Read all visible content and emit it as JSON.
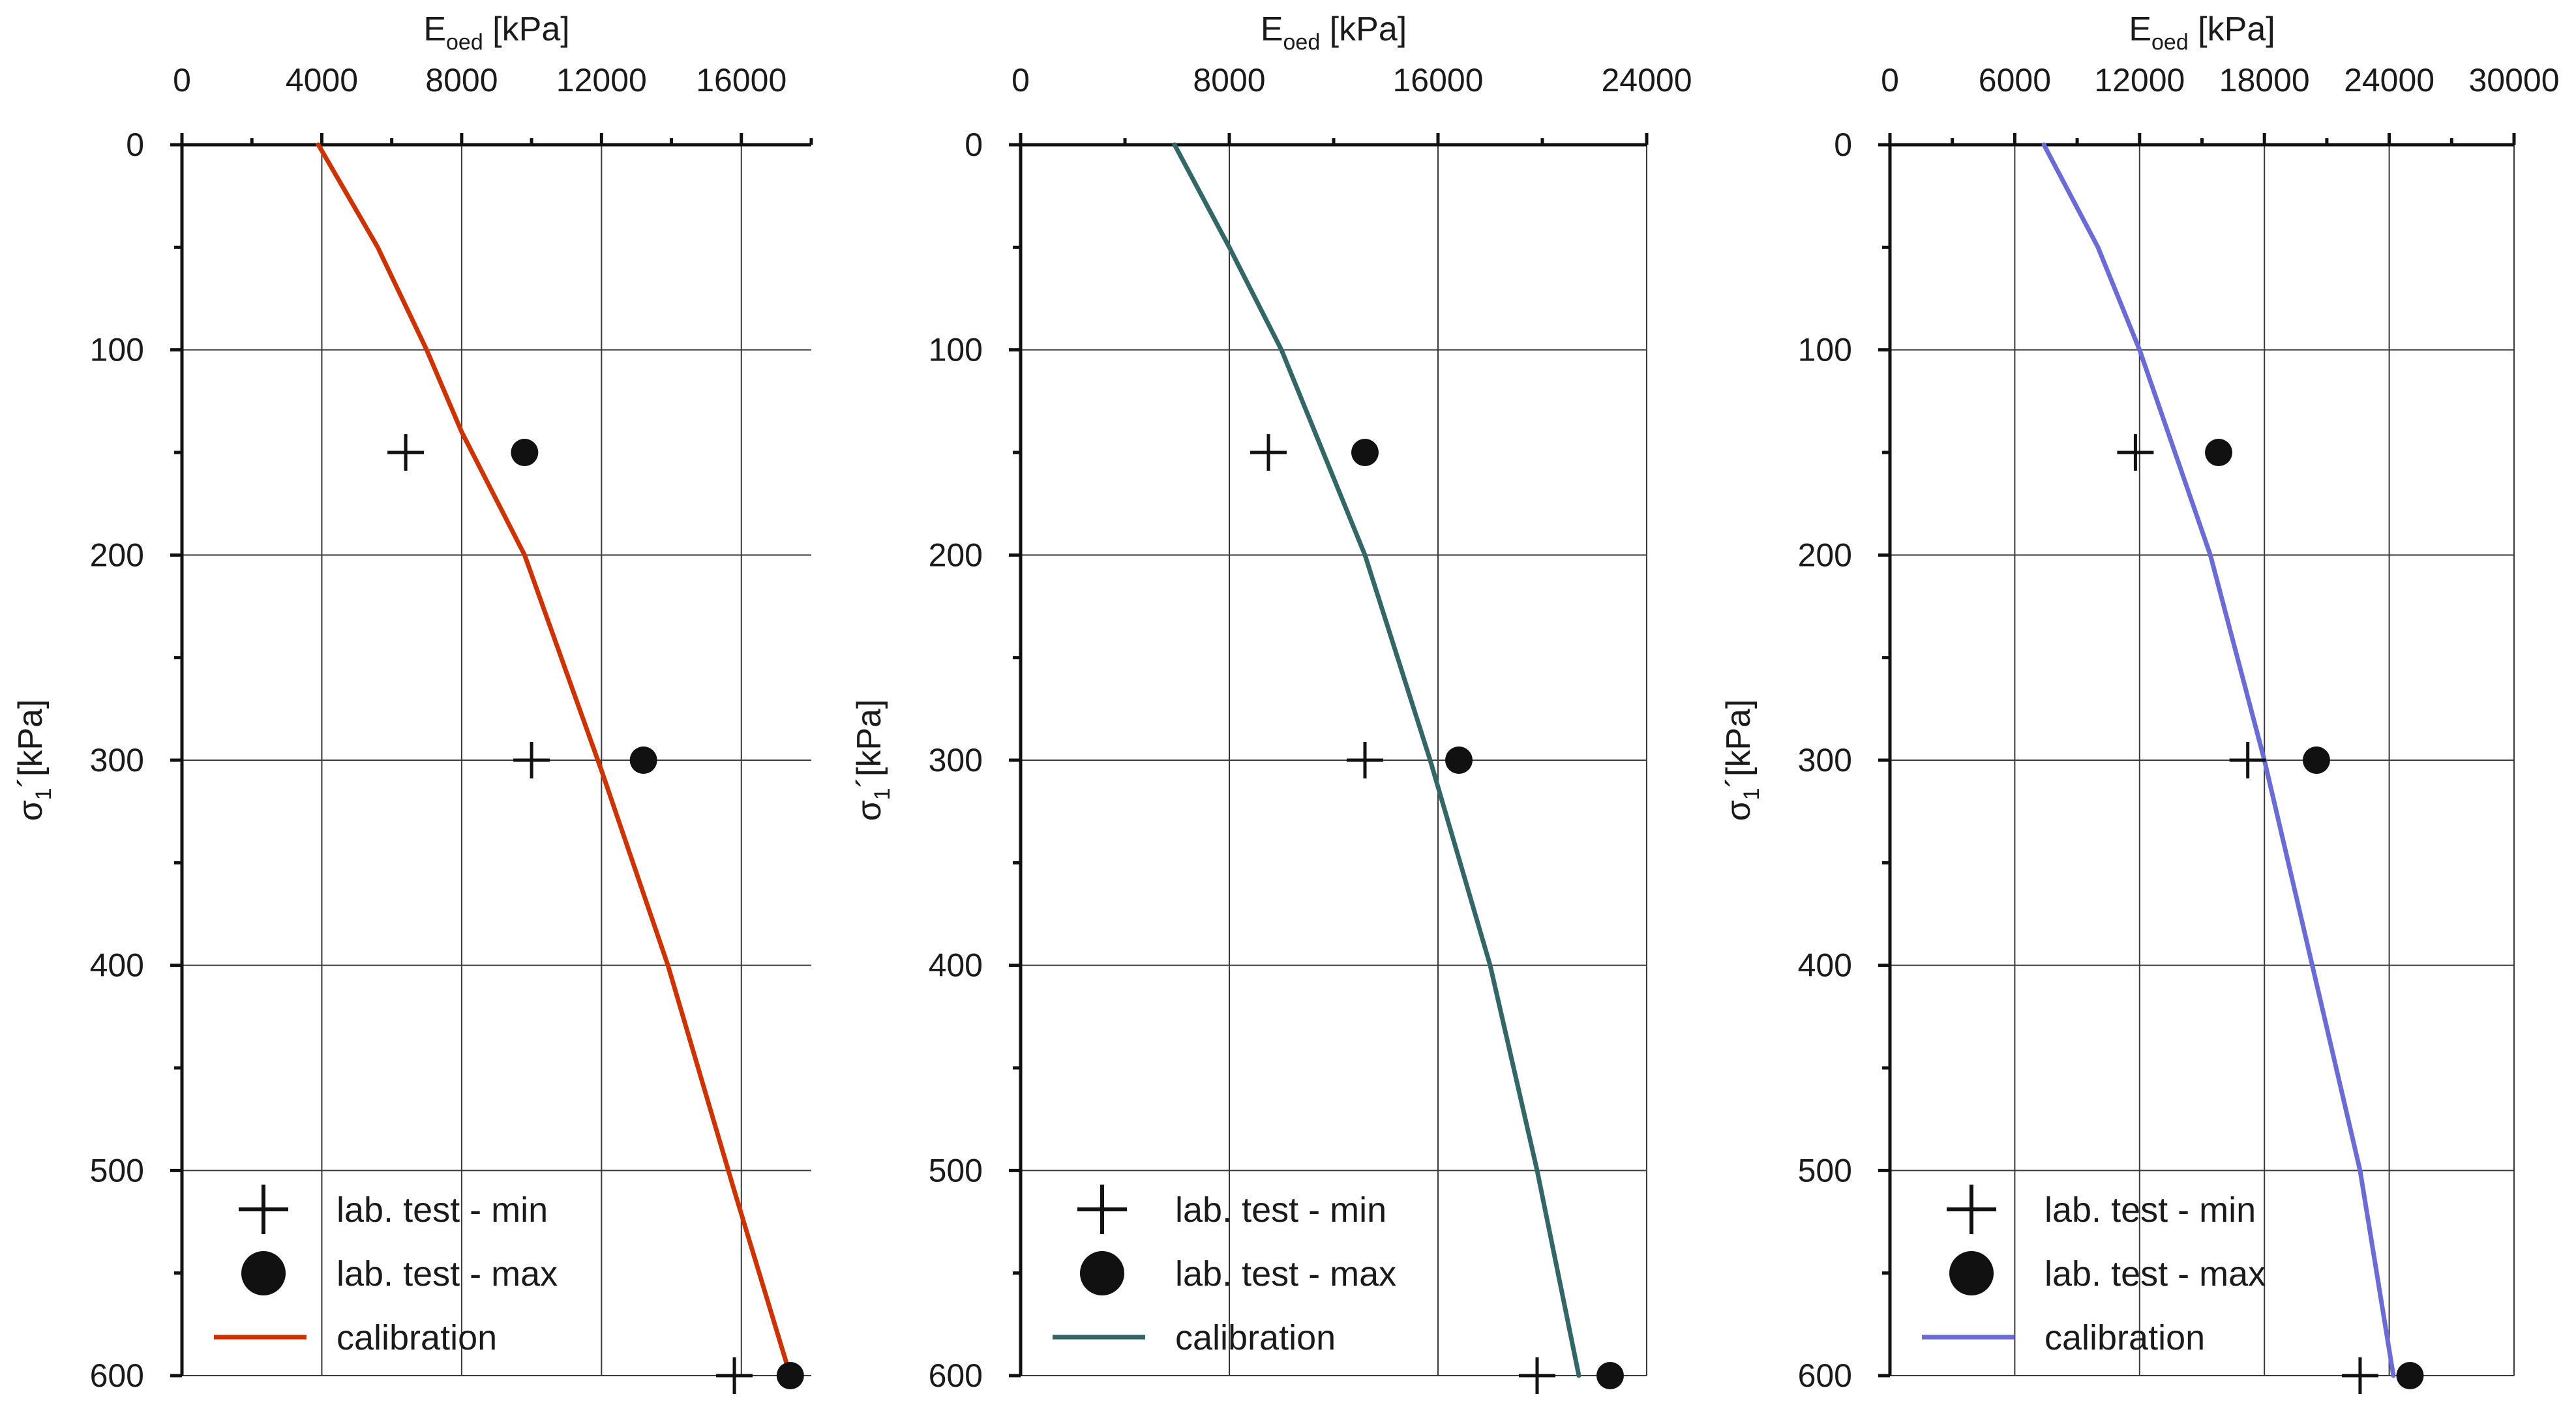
{
  "chart_data": [
    {
      "type": "line",
      "title": "",
      "xlabel": {
        "main": "E",
        "sub": "oed",
        "unit": "[kPa]"
      },
      "ylabel": {
        "main": "σ",
        "sub": "1",
        "unit": "´[kPa]"
      },
      "xlim": [
        0,
        18000
      ],
      "ylim": [
        0,
        600
      ],
      "xticks": [
        0,
        4000,
        8000,
        12000,
        16000
      ],
      "xtick_labels": [
        "0",
        "4000",
        "8000",
        "12000",
        "16000"
      ],
      "yticks": [
        0,
        100,
        200,
        300,
        400,
        500,
        600
      ],
      "ytick_labels": [
        "0",
        "100",
        "200",
        "300",
        "400",
        "500",
        "600"
      ],
      "grid": true,
      "y_axis_inverted": true,
      "x_axis_position": "top",
      "legend_position": "bottom-left",
      "calibration_color": "#cc3300",
      "series": [
        {
          "name": "lab. test - min",
          "marker": "plus",
          "points": [
            [
              6400,
              150
            ],
            [
              10000,
              300
            ],
            [
              15800,
              600
            ]
          ]
        },
        {
          "name": "lab. test - max",
          "marker": "circle",
          "points": [
            [
              9800,
              150
            ],
            [
              13200,
              300
            ],
            [
              17400,
              600
            ]
          ]
        },
        {
          "name": "calibration",
          "marker": "line",
          "points": [
            [
              3900,
              0
            ],
            [
              5600,
              50
            ],
            [
              7000,
              100
            ],
            [
              8000,
              140
            ],
            [
              9800,
              200
            ],
            [
              12000,
              305
            ],
            [
              13900,
              400
            ],
            [
              15800,
              510
            ],
            [
              17400,
              600
            ]
          ]
        }
      ]
    },
    {
      "type": "line",
      "title": "",
      "xlabel": {
        "main": "E",
        "sub": "oed",
        "unit": "[kPa]"
      },
      "ylabel": {
        "main": "σ",
        "sub": "1",
        "unit": "´[kPa]"
      },
      "xlim": [
        0,
        24000
      ],
      "ylim": [
        0,
        600
      ],
      "xticks": [
        0,
        8000,
        16000,
        24000
      ],
      "xtick_labels": [
        "0",
        "8000",
        "16000",
        "24000"
      ],
      "yticks": [
        0,
        100,
        200,
        300,
        400,
        500,
        600
      ],
      "ytick_labels": [
        "0",
        "100",
        "200",
        "300",
        "400",
        "500",
        "600"
      ],
      "grid": true,
      "y_axis_inverted": true,
      "x_axis_position": "top",
      "legend_position": "bottom-left",
      "calibration_color": "#336666",
      "series": [
        {
          "name": "lab. test - min",
          "marker": "plus",
          "points": [
            [
              9500,
              150
            ],
            [
              13200,
              300
            ],
            [
              19800,
              600
            ]
          ]
        },
        {
          "name": "lab. test - max",
          "marker": "circle",
          "points": [
            [
              13200,
              150
            ],
            [
              16800,
              300
            ],
            [
              22600,
              600
            ]
          ]
        },
        {
          "name": "calibration",
          "marker": "line",
          "points": [
            [
              5900,
              0
            ],
            [
              8000,
              50
            ],
            [
              10000,
              100
            ],
            [
              13200,
              200
            ],
            [
              15700,
              300
            ],
            [
              18000,
              400
            ],
            [
              19800,
              500
            ],
            [
              21400,
              600
            ]
          ]
        }
      ]
    },
    {
      "type": "line",
      "title": "",
      "xlabel": {
        "main": "E",
        "sub": "oed",
        "unit": "[kPa]"
      },
      "ylabel": {
        "main": "σ",
        "sub": "1",
        "unit": "´[kPa]"
      },
      "xlim": [
        0,
        30000
      ],
      "ylim": [
        0,
        600
      ],
      "xticks": [
        0,
        6000,
        12000,
        18000,
        24000,
        30000
      ],
      "xtick_labels": [
        "0",
        "6000",
        "12000",
        "18000",
        "24000",
        "30000"
      ],
      "yticks": [
        0,
        100,
        200,
        300,
        400,
        500,
        600
      ],
      "ytick_labels": [
        "0",
        "100",
        "200",
        "300",
        "400",
        "500",
        "600"
      ],
      "grid": true,
      "y_axis_inverted": true,
      "x_axis_position": "top",
      "legend_position": "bottom-left",
      "calibration_color": "#6b6bd6",
      "series": [
        {
          "name": "lab. test - min",
          "marker": "plus",
          "points": [
            [
              11800,
              150
            ],
            [
              17200,
              300
            ],
            [
              22600,
              600
            ]
          ]
        },
        {
          "name": "lab. test - max",
          "marker": "circle",
          "points": [
            [
              15800,
              150
            ],
            [
              20500,
              300
            ],
            [
              25000,
              600
            ]
          ]
        },
        {
          "name": "calibration",
          "marker": "line",
          "points": [
            [
              7400,
              0
            ],
            [
              10000,
              50
            ],
            [
              12000,
              100
            ],
            [
              15400,
              200
            ],
            [
              18000,
              300
            ],
            [
              20300,
              400
            ],
            [
              22600,
              500
            ],
            [
              24200,
              600
            ]
          ]
        }
      ]
    }
  ]
}
